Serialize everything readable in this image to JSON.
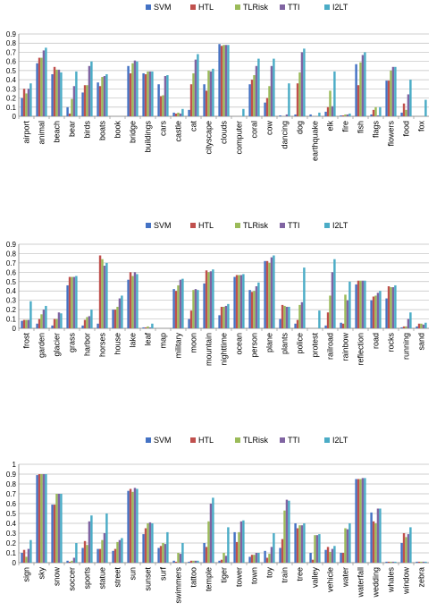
{
  "chart_data": [
    {
      "type": "bar",
      "title": "",
      "xlabel": "",
      "ylabel": "",
      "ylim": [
        0,
        0.9
      ],
      "yticks": [
        "0",
        "0.1",
        "0.2",
        "0.3",
        "0.4",
        "0.5",
        "0.6",
        "0.7",
        "0.8",
        "0.9"
      ],
      "grid": true,
      "legend": "top",
      "categories": [
        "airport",
        "animal",
        "beach",
        "bear",
        "birds",
        "boats",
        "book",
        "bridge",
        "buildings",
        "cars",
        "castle",
        "cat",
        "cityscape",
        "clouds",
        "computer",
        "coral",
        "cow",
        "dancing",
        "dog",
        "earthquake",
        "elk",
        "fire",
        "fish",
        "flags",
        "flowers",
        "food",
        "fox"
      ],
      "series": [
        {
          "name": "SVM",
          "color": "#4472C4",
          "values": [
            0.2,
            0.58,
            0.46,
            0.1,
            0.26,
            0.37,
            0,
            0.55,
            0.47,
            0.35,
            0.04,
            0.07,
            0.35,
            0.79,
            0,
            0.35,
            0.15,
            0.01,
            0.02,
            0.02,
            0.05,
            0.01,
            0.57,
            0.02,
            0.39,
            0.04,
            0
          ]
        },
        {
          "name": "HTL",
          "color": "#C0504D",
          "values": [
            0.3,
            0.64,
            0.54,
            0.03,
            0.34,
            0.33,
            0,
            0.47,
            0.46,
            0.22,
            0.03,
            0.35,
            0.28,
            0.77,
            0,
            0.4,
            0.2,
            0,
            0.36,
            0,
            0.1,
            0.01,
            0.34,
            0.07,
            0.39,
            0.14,
            0
          ]
        },
        {
          "name": "TLRisk",
          "color": "#9BBB59",
          "values": [
            0.25,
            0.64,
            0.51,
            0.19,
            0.34,
            0.43,
            0,
            0.58,
            0.49,
            0.23,
            0.04,
            0.47,
            0.5,
            0.78,
            0,
            0.45,
            0.33,
            0,
            0.48,
            0,
            0.28,
            0.02,
            0.59,
            0.1,
            0.5,
            0.07,
            0
          ]
        },
        {
          "name": "TTI",
          "color": "#8064A2",
          "values": [
            0.3,
            0.72,
            0.51,
            0.33,
            0.55,
            0.44,
            0,
            0.61,
            0.49,
            0.44,
            0.03,
            0.62,
            0.49,
            0.78,
            0,
            0.55,
            0.55,
            0.02,
            0.7,
            0,
            0.11,
            0.02,
            0.67,
            0.01,
            0.54,
            0.24,
            0
          ]
        },
        {
          "name": "I2LT",
          "color": "#4BACC6",
          "values": [
            0.36,
            0.75,
            0.48,
            0.49,
            0.6,
            0.46,
            0,
            0.6,
            0.49,
            0.45,
            0.08,
            0.68,
            0.52,
            0.78,
            0.08,
            0.63,
            0.63,
            0.36,
            0.74,
            0.04,
            0.49,
            0.03,
            0.7,
            0.1,
            0.54,
            0.4,
            0.18
          ]
        }
      ]
    },
    {
      "type": "bar",
      "title": "",
      "xlabel": "",
      "ylabel": "",
      "ylim": [
        0,
        0.9
      ],
      "yticks": [
        "0",
        "0.1",
        "0.2",
        "0.3",
        "0.4",
        "0.5",
        "0.6",
        "0.7",
        "0.8",
        "0.9"
      ],
      "grid": true,
      "legend": "top",
      "categories": [
        "frost",
        "garden",
        "glacier",
        "grass",
        "harbor",
        "horses",
        "house",
        "lake",
        "leaf",
        "map",
        "military",
        "moon",
        "mountain",
        "nighttime",
        "ocean",
        "person",
        "plane",
        "plants",
        "police",
        "protest",
        "railroad",
        "rainbow",
        "reflection",
        "road",
        "rocks",
        "running",
        "sand"
      ],
      "series": [
        {
          "name": "SVM",
          "color": "#4472C4",
          "values": [
            0.08,
            0.05,
            0.03,
            0.46,
            0.03,
            0.05,
            0.2,
            0.52,
            0.01,
            0,
            0.42,
            0.1,
            0.48,
            0.14,
            0.55,
            0.41,
            0.72,
            0.1,
            0.05,
            0,
            0.03,
            0.06,
            0.47,
            0.3,
            0.32,
            0.01,
            0.02
          ]
        },
        {
          "name": "HTL",
          "color": "#C0504D",
          "values": [
            0.09,
            0.1,
            0.1,
            0.55,
            0.09,
            0.78,
            0.2,
            0.6,
            0.01,
            0,
            0.4,
            0.19,
            0.62,
            0.23,
            0.57,
            0.39,
            0.72,
            0.25,
            0.09,
            0,
            0.17,
            0.05,
            0.51,
            0.34,
            0.45,
            0.02,
            0.05
          ]
        },
        {
          "name": "TLRisk",
          "color": "#9BBB59",
          "values": [
            0.09,
            0.15,
            0.1,
            0.55,
            0.12,
            0.74,
            0.23,
            0.56,
            0.02,
            0,
            0.46,
            0.41,
            0.6,
            0.23,
            0.57,
            0.4,
            0.7,
            0.24,
            0.25,
            0,
            0.35,
            0.36,
            0.51,
            0.35,
            0.44,
            0.02,
            0.05
          ]
        },
        {
          "name": "TTI",
          "color": "#8064A2",
          "values": [
            0.09,
            0.2,
            0.17,
            0.55,
            0.13,
            0.67,
            0.32,
            0.6,
            0.01,
            0,
            0.52,
            0.42,
            0.61,
            0.24,
            0.57,
            0.45,
            0.76,
            0.23,
            0.28,
            0,
            0.6,
            0.3,
            0.51,
            0.38,
            0.44,
            0.1,
            0.04
          ]
        },
        {
          "name": "I2LT",
          "color": "#4BACC6",
          "values": [
            0.29,
            0.24,
            0.16,
            0.56,
            0.2,
            0.7,
            0.35,
            0.58,
            0.05,
            0,
            0.53,
            0.41,
            0.63,
            0.26,
            0.58,
            0.49,
            0.78,
            0.23,
            0.65,
            0.19,
            0.74,
            0.5,
            0.51,
            0.4,
            0.46,
            0.17,
            0.06
          ]
        }
      ]
    },
    {
      "type": "bar",
      "title": "",
      "xlabel": "",
      "ylabel": "",
      "ylim": [
        0,
        1
      ],
      "yticks": [
        "0",
        "0.1",
        "0.2",
        "0.3",
        "0.4",
        "0.5",
        "0.6",
        "0.7",
        "0.8",
        "0.9",
        "1"
      ],
      "grid": true,
      "legend": "top",
      "categories": [
        "sign",
        "sky",
        "snow",
        "soccer",
        "sports",
        "statue",
        "street",
        "sun",
        "sunset",
        "surf",
        "swimmers",
        "tattoo",
        "temple",
        "tiger",
        "tower",
        "town",
        "toy",
        "train",
        "tree",
        "valley",
        "vehicle",
        "water",
        "waterfall",
        "wedding",
        "whales",
        "window",
        "zebra"
      ],
      "series": [
        {
          "name": "SVM",
          "color": "#4472C4",
          "values": [
            0.1,
            0.89,
            0.59,
            0.02,
            0.15,
            0.14,
            0.12,
            0.73,
            0.29,
            0.15,
            0.02,
            0.01,
            0.2,
            0.02,
            0.31,
            0.06,
            0.12,
            0.15,
            0.4,
            0.1,
            0.13,
            0.1,
            0.85,
            0.51,
            0.01,
            0.2,
            0.01
          ]
        },
        {
          "name": "HTL",
          "color": "#C0504D",
          "values": [
            0.13,
            0.9,
            0.59,
            0.01,
            0.22,
            0.14,
            0.14,
            0.75,
            0.35,
            0.17,
            0.01,
            0.02,
            0.16,
            0.03,
            0.21,
            0.08,
            0.05,
            0.24,
            0.35,
            0.03,
            0.16,
            0.1,
            0.85,
            0.42,
            0.01,
            0.3,
            0.01
          ]
        },
        {
          "name": "TLRisk",
          "color": "#9BBB59",
          "values": [
            0.06,
            0.9,
            0.7,
            0.02,
            0.18,
            0.23,
            0.21,
            0.72,
            0.4,
            0.2,
            0.1,
            0.02,
            0.42,
            0.1,
            0.31,
            0.08,
            0.09,
            0.53,
            0.38,
            0.28,
            0.11,
            0.35,
            0.85,
            0.4,
            0.01,
            0.26,
            0.01
          ]
        },
        {
          "name": "TTI",
          "color": "#8064A2",
          "values": [
            0.14,
            0.9,
            0.7,
            0.05,
            0.42,
            0.3,
            0.23,
            0.76,
            0.41,
            0.19,
            0.09,
            0.02,
            0.6,
            0.07,
            0.42,
            0.1,
            0.16,
            0.64,
            0.38,
            0.28,
            0.14,
            0.34,
            0.86,
            0.55,
            0.01,
            0.29,
            0.01
          ]
        },
        {
          "name": "I2LT",
          "color": "#4BACC6",
          "values": [
            0.23,
            0.9,
            0.7,
            0.2,
            0.48,
            0.5,
            0.25,
            0.75,
            0.4,
            0.31,
            0.2,
            0.02,
            0.66,
            0.36,
            0.43,
            0.1,
            0.3,
            0.63,
            0.4,
            0.29,
            0.17,
            0.4,
            0.86,
            0.55,
            0.01,
            0.36,
            0.01
          ]
        }
      ]
    }
  ]
}
